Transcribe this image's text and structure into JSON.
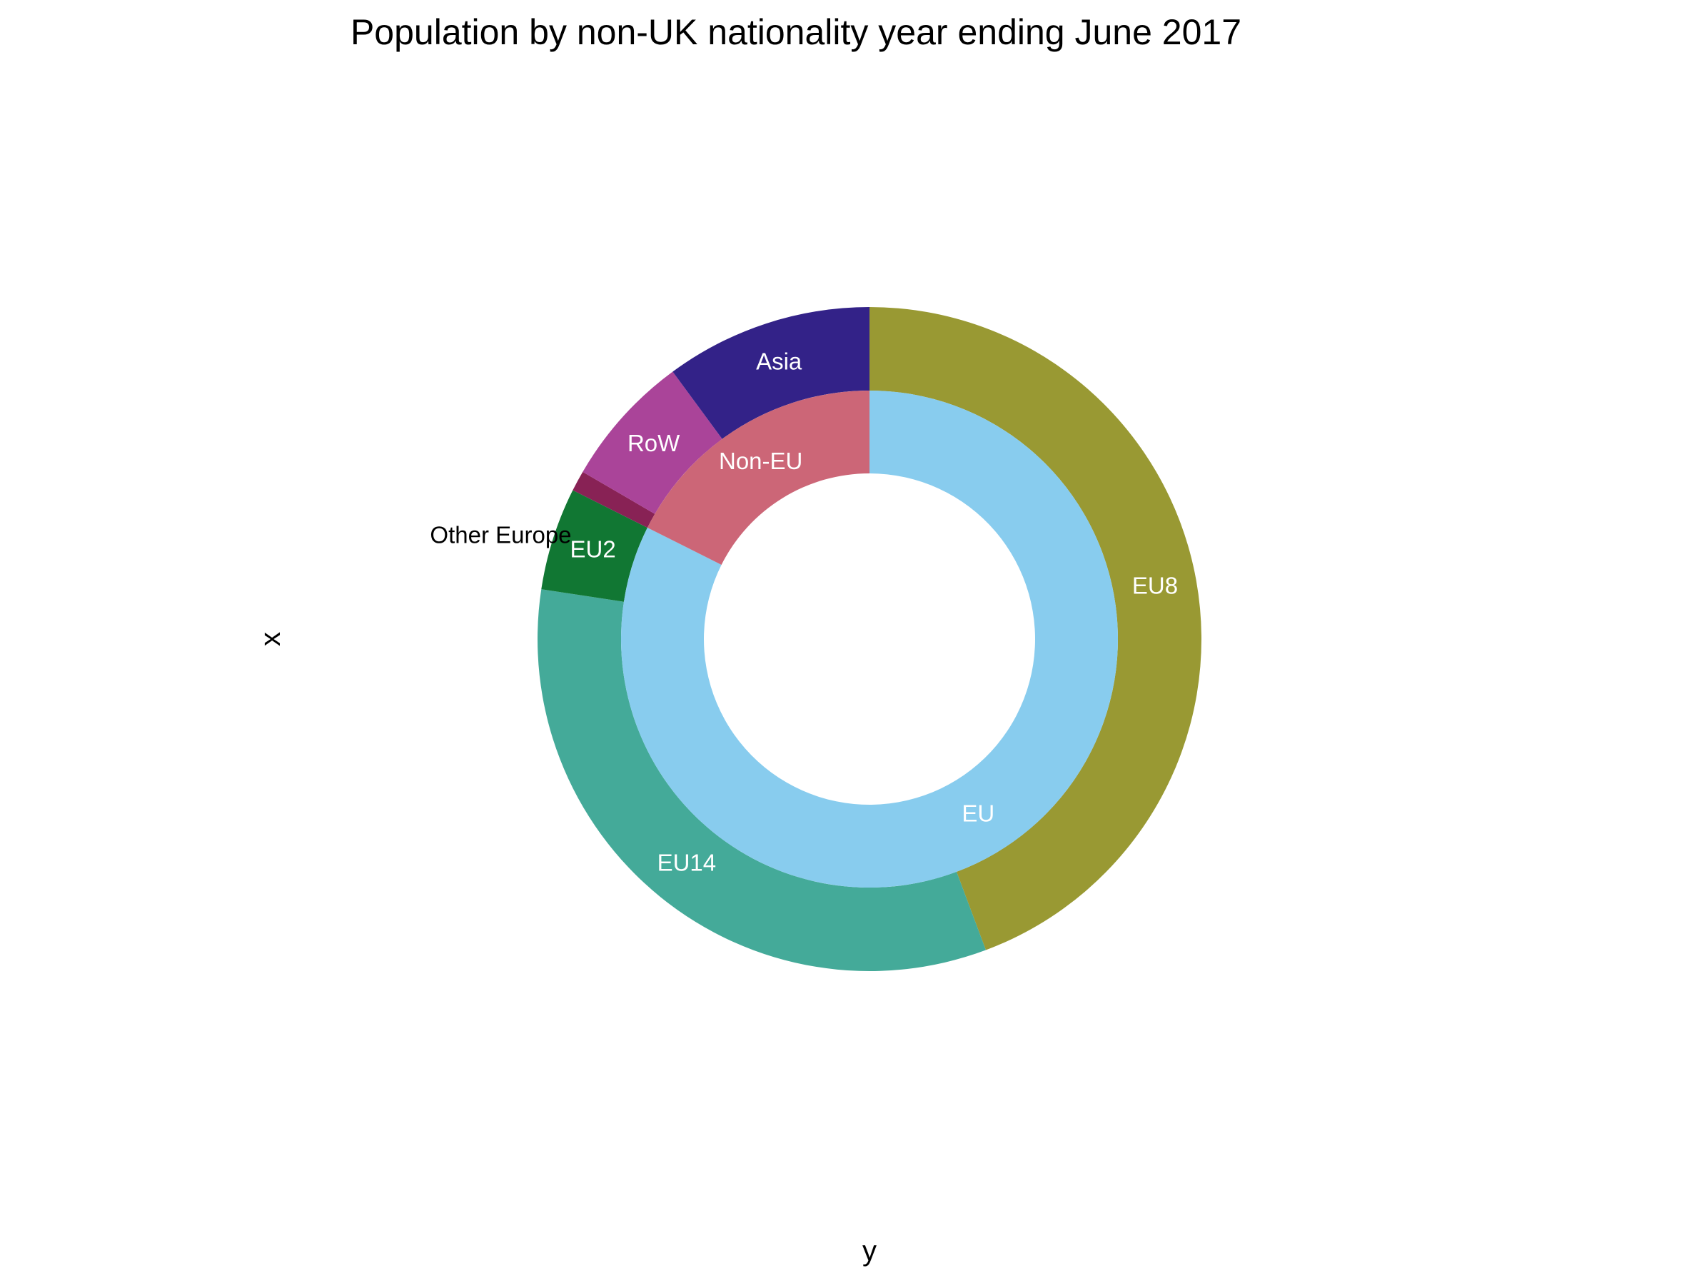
{
  "chart_data": {
    "type": "pie",
    "variant": "nested-donut",
    "title": "Population by non-UK nationality year ending June 2017",
    "xlabel": "y",
    "ylabel": "x",
    "legend": "none",
    "grid": false,
    "inner_ring": [
      {
        "name": "EU",
        "value": 82.4,
        "color": "#88CCEE",
        "label_color": "#ffffff"
      },
      {
        "name": "Non-EU",
        "value": 17.6,
        "color": "#CC6677",
        "label_color": "#ffffff"
      }
    ],
    "outer_ring": [
      {
        "name": "EU8",
        "value": 44.3,
        "color": "#999933",
        "label_color": "#ffffff"
      },
      {
        "name": "EU14",
        "value": 33.1,
        "color": "#44AA99",
        "label_color": "#ffffff"
      },
      {
        "name": "EU2",
        "value": 5.0,
        "color": "#117733",
        "label_color": "#ffffff"
      },
      {
        "name": "Other Europe",
        "value": 1.0,
        "color": "#882255",
        "label_color": "#000000"
      },
      {
        "name": "RoW",
        "value": 6.5,
        "color": "#AA4499",
        "label_color": "#ffffff"
      },
      {
        "name": "Asia",
        "value": 10.1,
        "color": "#332288",
        "label_color": "#ffffff"
      }
    ]
  }
}
